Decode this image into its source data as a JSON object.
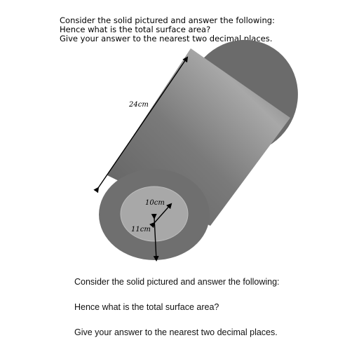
{
  "header": {
    "line1": "Consider the solid pictured and answer the following:",
    "line2": "Hence what is the total surface area?",
    "line3": "Give your answer to the nearest two decimal places."
  },
  "diagram": {
    "length_label": "24cm",
    "inner_radius_label": "10cm",
    "outer_radius_label": "11cm"
  },
  "caption": {
    "line1": "Consider the solid pictured and answer the following:",
    "line2": "Hence what is the total surface area?",
    "line3": "Give your answer to the nearest two decimal places."
  }
}
